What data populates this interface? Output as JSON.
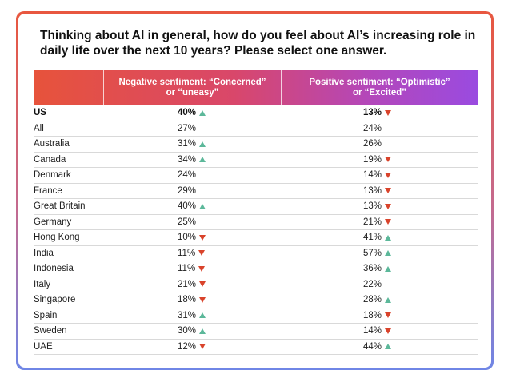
{
  "question": "Thinking about AI in general, how do you feel about AI’s increasing role in daily life over the next 10 years? Please select one answer.",
  "columns": {
    "country": "",
    "negative_line1": "Negative sentiment: “Concerned”",
    "negative_line2": "or “uneasy”",
    "positive_line1": "Positive sentiment: “Optimistic”",
    "positive_line2": "or “Excited”"
  },
  "colors": {
    "up_arrow": "#5cb89a",
    "down_arrow": "#d9432b",
    "header_gradient_start": "#e7533b",
    "header_gradient_end": "#9a4be0"
  },
  "rows": [
    {
      "country": "US",
      "negative": "40%",
      "negative_trend": "up",
      "positive": "13%",
      "positive_trend": "down"
    },
    {
      "country": "All",
      "negative": "27%",
      "negative_trend": "none",
      "positive": "24%",
      "positive_trend": "none"
    },
    {
      "country": "Australia",
      "negative": "31%",
      "negative_trend": "up",
      "positive": "26%",
      "positive_trend": "none"
    },
    {
      "country": "Canada",
      "negative": "34%",
      "negative_trend": "up",
      "positive": "19%",
      "positive_trend": "down"
    },
    {
      "country": "Denmark",
      "negative": "24%",
      "negative_trend": "none",
      "positive": "14%",
      "positive_trend": "down"
    },
    {
      "country": "France",
      "negative": "29%",
      "negative_trend": "none",
      "positive": "13%",
      "positive_trend": "down"
    },
    {
      "country": "Great Britain",
      "negative": "40%",
      "negative_trend": "up",
      "positive": "13%",
      "positive_trend": "down"
    },
    {
      "country": "Germany",
      "negative": "25%",
      "negative_trend": "none",
      "positive": "21%",
      "positive_trend": "down"
    },
    {
      "country": "Hong Kong",
      "negative": "10%",
      "negative_trend": "down",
      "positive": "41%",
      "positive_trend": "up"
    },
    {
      "country": "India",
      "negative": "11%",
      "negative_trend": "down",
      "positive": "57%",
      "positive_trend": "up"
    },
    {
      "country": "Indonesia",
      "negative": "11%",
      "negative_trend": "down",
      "positive": "36%",
      "positive_trend": "up"
    },
    {
      "country": "Italy",
      "negative": "21%",
      "negative_trend": "down",
      "positive": "22%",
      "positive_trend": "none"
    },
    {
      "country": "Singapore",
      "negative": "18%",
      "negative_trend": "down",
      "positive": "28%",
      "positive_trend": "up"
    },
    {
      "country": "Spain",
      "negative": "31%",
      "negative_trend": "up",
      "positive": "18%",
      "positive_trend": "down"
    },
    {
      "country": "Sweden",
      "negative": "30%",
      "negative_trend": "up",
      "positive": "14%",
      "positive_trend": "down"
    },
    {
      "country": "UAE",
      "negative": "12%",
      "negative_trend": "down",
      "positive": "44%",
      "positive_trend": "up"
    }
  ]
}
